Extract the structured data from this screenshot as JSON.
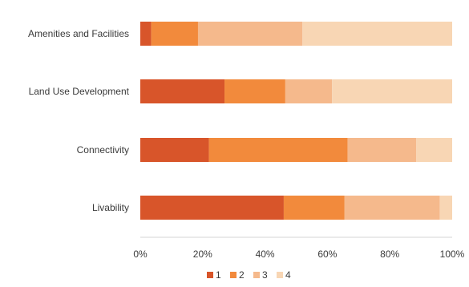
{
  "chart_data": {
    "type": "bar",
    "orientation": "horizontal",
    "stacked": true,
    "normalized": true,
    "categories": [
      "Amenities and Facilities",
      "Land Use Development",
      "Connectivity",
      "Livability"
    ],
    "series": [
      {
        "name": "1",
        "color": "#d8552a",
        "values": [
          3.5,
          27,
          22,
          46
        ]
      },
      {
        "name": "2",
        "color": "#f28a3c",
        "values": [
          15,
          19.5,
          44.5,
          19.5
        ]
      },
      {
        "name": "3",
        "color": "#f5b98c",
        "values": [
          33.5,
          15,
          22,
          30.5
        ]
      },
      {
        "name": "4",
        "color": "#f8d6b4",
        "values": [
          48,
          38.5,
          11.5,
          4
        ]
      }
    ],
    "xlim": [
      0,
      100
    ],
    "x_ticks": [
      0,
      20,
      40,
      60,
      80,
      100
    ],
    "x_tick_labels": [
      "0%",
      "20%",
      "40%",
      "60%",
      "80%",
      "100%"
    ],
    "grid": false,
    "legend_position": "bottom"
  }
}
